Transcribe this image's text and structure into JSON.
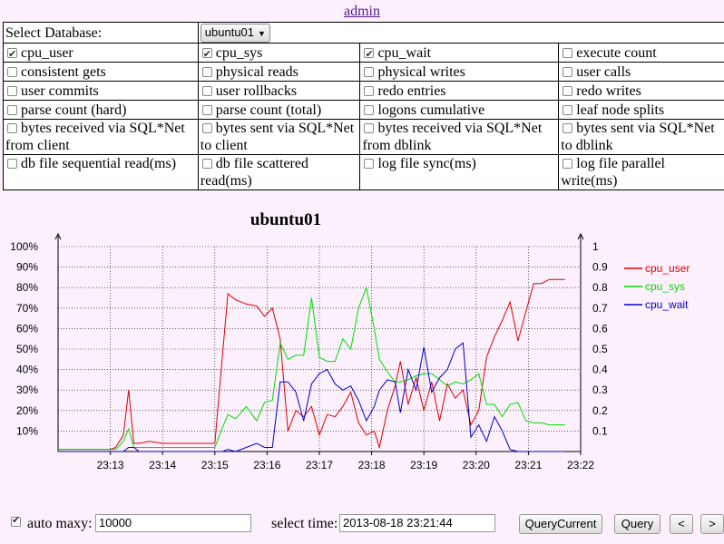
{
  "header": {
    "admin_link": "admin"
  },
  "database": {
    "label": "Select Database:",
    "selected": "ubuntu01"
  },
  "metrics": [
    [
      {
        "label": "cpu_user",
        "checked": true
      },
      {
        "label": "cpu_sys",
        "checked": true
      },
      {
        "label": "cpu_wait",
        "checked": true
      },
      {
        "label": "execute count",
        "checked": false
      }
    ],
    [
      {
        "label": "consistent gets",
        "checked": false
      },
      {
        "label": "physical reads",
        "checked": false
      },
      {
        "label": "physical writes",
        "checked": false
      },
      {
        "label": "user calls",
        "checked": false
      }
    ],
    [
      {
        "label": "user commits",
        "checked": false
      },
      {
        "label": "user rollbacks",
        "checked": false
      },
      {
        "label": "redo entries",
        "checked": false
      },
      {
        "label": "redo writes",
        "checked": false
      }
    ],
    [
      {
        "label": "parse count (hard)",
        "checked": false
      },
      {
        "label": "parse count (total)",
        "checked": false
      },
      {
        "label": "logons cumulative",
        "checked": false
      },
      {
        "label": "leaf node splits",
        "checked": false
      }
    ],
    [
      {
        "label": "bytes received via SQL*Net from client",
        "checked": false
      },
      {
        "label": "bytes sent via SQL*Net to client",
        "checked": false
      },
      {
        "label": "bytes received via SQL*Net from dblink",
        "checked": false
      },
      {
        "label": "bytes sent via SQL*Net to dblink",
        "checked": false
      }
    ],
    [
      {
        "label": "db file sequential read(ms)",
        "checked": false
      },
      {
        "label": "db file scattered read(ms)",
        "checked": false
      },
      {
        "label": "log file sync(ms)",
        "checked": false
      },
      {
        "label": "log file parallel write(ms)",
        "checked": false
      }
    ]
  ],
  "chart_data": {
    "type": "line",
    "title": "ubuntu01",
    "x_ticks": [
      "23:13",
      "23:14",
      "23:15",
      "23:16",
      "23:17",
      "23:18",
      "23:19",
      "23:20",
      "23:21",
      "23:22"
    ],
    "y_left_ticks": [
      "10%",
      "20%",
      "30%",
      "40%",
      "50%",
      "60%",
      "70%",
      "80%",
      "90%",
      "100%"
    ],
    "y_right_ticks": [
      "0.1",
      "0.2",
      "0.3",
      "0.4",
      "0.5",
      "0.6",
      "0.7",
      "0.8",
      "0.9",
      "1"
    ],
    "ylim": [
      0,
      1
    ],
    "x_range_minutes": [
      0,
      10
    ],
    "legend_position": "right",
    "series": [
      {
        "name": "cpu_user",
        "color": "#dd0000",
        "x": [
          0,
          0.5,
          1,
          1.1,
          1.25,
          1.35,
          1.45,
          1.55,
          1.75,
          2,
          2.25,
          2.5,
          2.75,
          2.9,
          3,
          3.15,
          3.25,
          3.4,
          3.6,
          3.8,
          3.95,
          4.1,
          4.25,
          4.4,
          4.55,
          4.7,
          4.85,
          5,
          5.15,
          5.3,
          5.45,
          5.6,
          5.75,
          5.9,
          6.05,
          6.15,
          6.3,
          6.45,
          6.55,
          6.7,
          6.85,
          7,
          7.15,
          7.3,
          7.45,
          7.6,
          7.75,
          7.9,
          8.05,
          8.2,
          8.35,
          8.5,
          8.65,
          8.8,
          8.95,
          9.1,
          9.25,
          9.4,
          9.55,
          9.7
        ],
        "y": [
          0.01,
          0.01,
          0.01,
          0.02,
          0.08,
          0.3,
          0.04,
          0.04,
          0.05,
          0.04,
          0.04,
          0.04,
          0.04,
          0.04,
          0.04,
          0.48,
          0.77,
          0.74,
          0.72,
          0.71,
          0.66,
          0.7,
          0.55,
          0.1,
          0.2,
          0.17,
          0.22,
          0.08,
          0.18,
          0.17,
          0.22,
          0.29,
          0.14,
          0.08,
          0.1,
          0.02,
          0.2,
          0.32,
          0.44,
          0.23,
          0.36,
          0.2,
          0.34,
          0.15,
          0.33,
          0.26,
          0.3,
          0.13,
          0.2,
          0.46,
          0.56,
          0.64,
          0.73,
          0.54,
          0.68,
          0.82,
          0.82,
          0.84,
          0.84,
          0.84
        ]
      },
      {
        "name": "cpu_sys",
        "color": "#00dd00",
        "x": [
          0,
          0.5,
          1,
          1.1,
          1.25,
          1.35,
          1.45,
          1.55,
          1.75,
          2,
          2.25,
          2.5,
          2.75,
          2.9,
          3,
          3.15,
          3.25,
          3.4,
          3.6,
          3.8,
          3.95,
          4.1,
          4.25,
          4.4,
          4.55,
          4.7,
          4.85,
          5,
          5.15,
          5.3,
          5.45,
          5.6,
          5.75,
          5.9,
          6.05,
          6.15,
          6.3,
          6.45,
          6.55,
          6.7,
          6.85,
          7,
          7.15,
          7.3,
          7.45,
          7.6,
          7.75,
          7.9,
          8.05,
          8.2,
          8.35,
          8.5,
          8.65,
          8.8,
          8.95,
          9.1,
          9.25,
          9.4,
          9.55,
          9.7
        ],
        "y": [
          0.01,
          0.01,
          0.01,
          0.01,
          0.05,
          0.11,
          0.02,
          0.02,
          0.02,
          0.02,
          0.02,
          0.02,
          0.02,
          0.02,
          0.02,
          0.12,
          0.18,
          0.16,
          0.22,
          0.15,
          0.24,
          0.25,
          0.53,
          0.45,
          0.47,
          0.47,
          0.75,
          0.46,
          0.44,
          0.44,
          0.55,
          0.5,
          0.7,
          0.8,
          0.6,
          0.45,
          0.39,
          0.34,
          0.34,
          0.35,
          0.37,
          0.38,
          0.38,
          0.35,
          0.32,
          0.34,
          0.33,
          0.35,
          0.38,
          0.23,
          0.23,
          0.17,
          0.23,
          0.24,
          0.15,
          0.14,
          0.14,
          0.13,
          0.13,
          0.13
        ]
      },
      {
        "name": "cpu_wait",
        "color": "#0000cc",
        "x": [
          0,
          0.5,
          1,
          1.1,
          1.25,
          1.35,
          1.45,
          1.55,
          1.75,
          2,
          2.25,
          2.5,
          2.75,
          2.9,
          3,
          3.15,
          3.25,
          3.4,
          3.6,
          3.8,
          3.95,
          4.1,
          4.25,
          4.4,
          4.55,
          4.7,
          4.85,
          5,
          5.15,
          5.3,
          5.45,
          5.6,
          5.75,
          5.9,
          6.05,
          6.15,
          6.3,
          6.45,
          6.55,
          6.7,
          6.85,
          7,
          7.15,
          7.3,
          7.45,
          7.6,
          7.75,
          7.9,
          8.05,
          8.2,
          8.35,
          8.5,
          8.65,
          8.8,
          8.95,
          9.1,
          9.25,
          9.4,
          9.55,
          9.7
        ],
        "y": [
          0,
          0,
          0,
          0,
          0,
          0.02,
          0.02,
          0,
          0,
          0,
          0,
          0,
          0,
          0,
          0,
          0,
          0.01,
          0,
          0.02,
          0.04,
          0.02,
          0.02,
          0.34,
          0.34,
          0.29,
          0.15,
          0.33,
          0.38,
          0.4,
          0.33,
          0.3,
          0.32,
          0.25,
          0.15,
          0.22,
          0.3,
          0.35,
          0.34,
          0.19,
          0.4,
          0.3,
          0.51,
          0.29,
          0.36,
          0.4,
          0.5,
          0.53,
          0.07,
          0.13,
          0.05,
          0.17,
          0.1,
          0.01,
          0,
          0,
          0,
          0,
          0,
          0,
          0
        ]
      }
    ]
  },
  "footer": {
    "auto_maxy_checked": true,
    "auto_maxy_label": "auto maxy:",
    "auto_maxy_value": "10000",
    "select_time_label": "select time:",
    "select_time_value": "2013-08-18 23:21:44",
    "query_current_label": "QueryCurrent",
    "query_label": "Query",
    "prev_label": "<",
    "next_label": ">"
  }
}
